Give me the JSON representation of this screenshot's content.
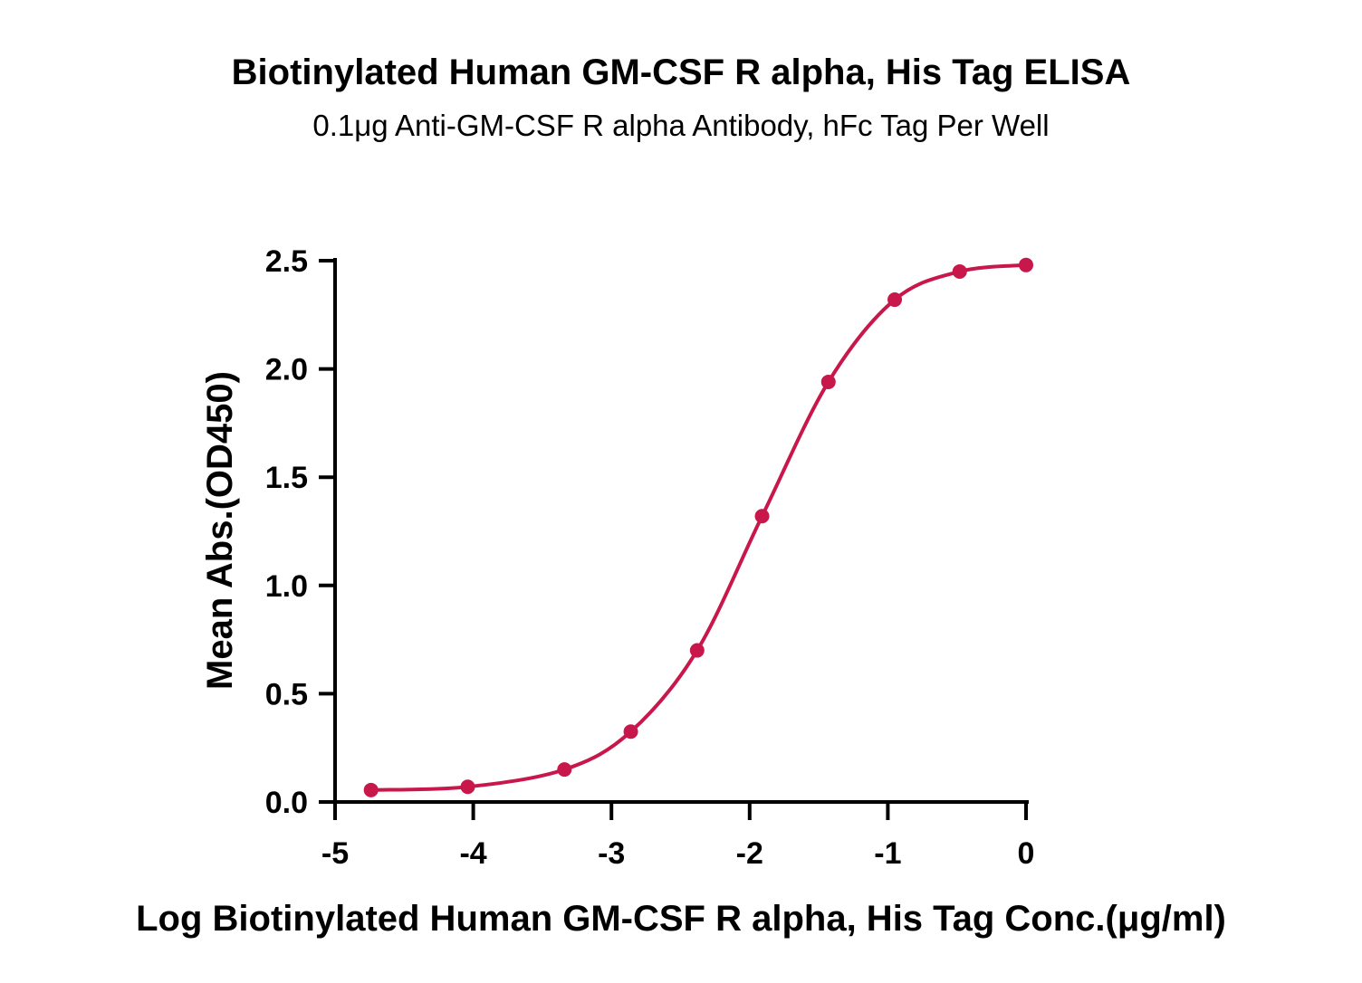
{
  "chart_data": {
    "type": "scatter",
    "title": "Biotinylated Human GM-CSF R alpha, His Tag ELISA",
    "subtitle": "0.1μg Anti-GM-CSF R alpha Antibody, hFc Tag Per Well",
    "xlabel": "Log Biotinylated Human GM-CSF R alpha, His Tag Conc.(μg/ml)",
    "ylabel": "Mean Abs.(OD450)",
    "xlim": [
      -5,
      0
    ],
    "ylim": [
      0,
      2.5
    ],
    "x_ticks": [
      "-5",
      "-4",
      "-3",
      "-2",
      "-1",
      "0"
    ],
    "y_ticks": [
      "0.0",
      "0.5",
      "1.0",
      "1.5",
      "2.0",
      "2.5"
    ],
    "grid": false,
    "series": [
      {
        "color": "#c8174a",
        "marker": "circle",
        "fit": "four-parameter logistic curve",
        "x": [
          -4.74,
          -4.04,
          -3.34,
          -2.86,
          -2.38,
          -1.91,
          -1.43,
          -0.95,
          -0.48,
          0.0
        ],
        "y": [
          0.055,
          0.07,
          0.15,
          0.325,
          0.7,
          1.32,
          1.94,
          2.32,
          2.45,
          2.48
        ]
      }
    ]
  }
}
